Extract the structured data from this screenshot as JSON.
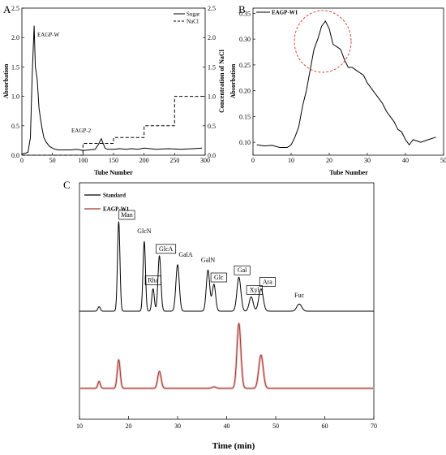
{
  "chart_data": [
    {
      "panel": "A",
      "type": "line",
      "xlabel": "Tube Number",
      "ylabel": "Absorbation",
      "y2label": "Concentration of NaCl",
      "xlim": [
        0,
        300
      ],
      "ylim": [
        0,
        2.5
      ],
      "y2lim": [
        0,
        2.5
      ],
      "xticks": [
        "0",
        "50",
        "100",
        "150",
        "200",
        "250",
        "300"
      ],
      "yticks": [
        "0.0",
        "0.5",
        "1.0",
        "1.5",
        "2.0",
        "2.5"
      ],
      "y2ticks": [
        "0.0",
        "0.5",
        "1.0",
        "1.5",
        "2.0",
        "2.5"
      ],
      "legend_position": "top-right",
      "series": [
        {
          "name": "Sugar",
          "style": "solid",
          "color": "#000000",
          "x": [
            0,
            5,
            10,
            14,
            17,
            20,
            22,
            25,
            28,
            30,
            33,
            36,
            40,
            45,
            50,
            55,
            60,
            70,
            80,
            90,
            100,
            110,
            120,
            125,
            130,
            133,
            136,
            140,
            150,
            160,
            170,
            180,
            190,
            200,
            220,
            240,
            260,
            280,
            295
          ],
          "y": [
            0.02,
            0.03,
            0.05,
            0.3,
            1.4,
            2.2,
            1.5,
            1.3,
            0.8,
            0.65,
            0.45,
            0.3,
            0.22,
            0.15,
            0.12,
            0.1,
            0.09,
            0.09,
            0.09,
            0.1,
            0.08,
            0.09,
            0.1,
            0.18,
            0.28,
            0.2,
            0.12,
            0.1,
            0.1,
            0.11,
            0.1,
            0.11,
            0.1,
            0.12,
            0.1,
            0.11,
            0.1,
            0.11,
            0.12
          ]
        },
        {
          "name": "NaCl",
          "style": "dashed",
          "color": "#000000",
          "x": [
            0,
            100,
            100,
            150,
            150,
            200,
            200,
            250,
            250,
            300
          ],
          "y": [
            0.0,
            0.0,
            0.2,
            0.2,
            0.3,
            0.3,
            0.5,
            0.5,
            1.0,
            1.0
          ]
        }
      ],
      "annotations": [
        "EAGP-W",
        "EAGP-2"
      ]
    },
    {
      "panel": "B",
      "type": "line",
      "xlabel": "Tube Number",
      "ylabel": "Absorbation",
      "xlim": [
        0,
        50
      ],
      "ylim": [
        0.075,
        0.36
      ],
      "xticks": [
        "0",
        "10",
        "20",
        "30",
        "40",
        "50"
      ],
      "yticks": [
        "0.10",
        "0.15",
        "0.20",
        "0.25",
        "0.30",
        "0.35"
      ],
      "legend_position": "top-left",
      "series": [
        {
          "name": "EAGP-W1",
          "color": "#000000",
          "x": [
            1,
            3,
            5,
            7,
            9,
            10,
            11,
            12,
            13,
            14,
            15,
            16,
            17,
            18,
            19,
            20,
            21,
            22,
            23,
            24,
            25,
            26,
            27,
            28,
            29,
            30,
            31,
            32,
            33,
            34,
            35,
            36,
            37,
            38,
            39,
            40,
            41,
            42,
            44,
            46,
            48
          ],
          "y": [
            0.095,
            0.093,
            0.094,
            0.09,
            0.09,
            0.095,
            0.11,
            0.13,
            0.17,
            0.2,
            0.24,
            0.28,
            0.3,
            0.325,
            0.335,
            0.32,
            0.29,
            0.285,
            0.28,
            0.26,
            0.245,
            0.245,
            0.24,
            0.235,
            0.23,
            0.215,
            0.205,
            0.195,
            0.185,
            0.175,
            0.16,
            0.15,
            0.14,
            0.125,
            0.12,
            0.105,
            0.095,
            0.105,
            0.1,
            0.105,
            0.11
          ]
        }
      ],
      "highlight_circle": {
        "x": 19,
        "y": 0.31
      }
    },
    {
      "panel": "C",
      "type": "line",
      "xlabel": "Time (min)",
      "xlim": [
        10,
        70
      ],
      "xticks": [
        "10",
        "20",
        "30",
        "40",
        "50",
        "60",
        "70"
      ],
      "legend_position": "top-left",
      "series": [
        {
          "name": "Standard",
          "color": "#000000",
          "peaks": [
            {
              "label": "",
              "time": 14.0,
              "height": 0.05,
              "width": 0.25
            },
            {
              "label": "Man",
              "time": 18.0,
              "height": 1.0,
              "width": 0.25
            },
            {
              "label": "GlcN",
              "time": 23.2,
              "height": 0.78,
              "width": 0.25
            },
            {
              "label": "Rha",
              "time": 25.0,
              "height": 0.25,
              "width": 0.25
            },
            {
              "label": "GlcA",
              "time": 26.3,
              "height": 0.62,
              "width": 0.3
            },
            {
              "label": "GalA",
              "time": 30.0,
              "height": 0.52,
              "width": 0.35
            },
            {
              "label": "GalN",
              "time": 36.2,
              "height": 0.46,
              "width": 0.35
            },
            {
              "label": "Glc",
              "time": 37.4,
              "height": 0.3,
              "width": 0.35
            },
            {
              "label": "Gal",
              "time": 42.5,
              "height": 0.38,
              "width": 0.4
            },
            {
              "label": "Xyl",
              "time": 45.0,
              "height": 0.16,
              "width": 0.4
            },
            {
              "label": "Ara",
              "time": 47.0,
              "height": 0.25,
              "width": 0.45
            },
            {
              "label": "Fuc",
              "time": 54.8,
              "height": 0.08,
              "width": 0.5
            }
          ],
          "boxed_labels": [
            "Man",
            "Rha",
            "GlcA",
            "Glc",
            "Gal",
            "Xyl",
            "Ara"
          ]
        },
        {
          "name": "EAGP-W1",
          "color": "#a0352c",
          "peaks": [
            {
              "label": "",
              "time": 14.0,
              "height": 0.09,
              "width": 0.25
            },
            {
              "label": "",
              "time": 18.0,
              "height": 0.37,
              "width": 0.3
            },
            {
              "label": "",
              "time": 26.3,
              "height": 0.22,
              "width": 0.35
            },
            {
              "label": "",
              "time": 37.4,
              "height": 0.02,
              "width": 0.4
            },
            {
              "label": "",
              "time": 42.5,
              "height": 0.84,
              "width": 0.4
            },
            {
              "label": "",
              "time": 47.0,
              "height": 0.43,
              "width": 0.45
            }
          ]
        }
      ]
    }
  ],
  "panels": {
    "a": "A",
    "b": "B",
    "c": "C"
  },
  "colors": {
    "axis": "#000000",
    "trace": "#000000",
    "sample": "#a0352c",
    "sample_glow": "#e8c6c6",
    "circle": "#d14b3c"
  }
}
